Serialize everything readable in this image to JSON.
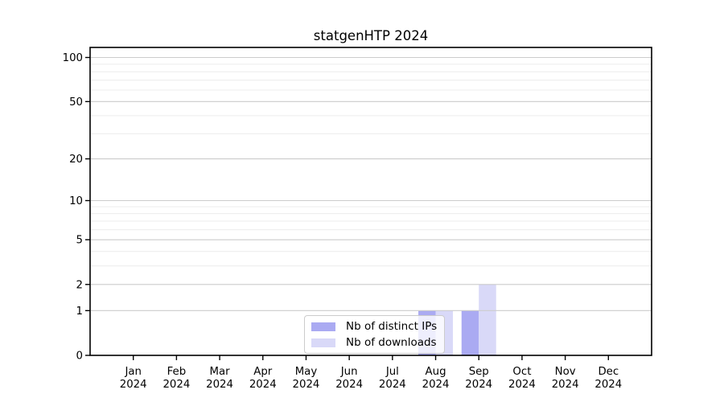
{
  "chart_data": {
    "type": "bar",
    "title": "statgenHTP 2024",
    "categories": [
      "Jan",
      "Feb",
      "Mar",
      "Apr",
      "May",
      "Jun",
      "Jul",
      "Aug",
      "Sep",
      "Oct",
      "Nov",
      "Dec"
    ],
    "category_year": "2024",
    "series": [
      {
        "name": "Nb of distinct IPs",
        "color": "#aaaaf2",
        "values": [
          0,
          0,
          0,
          0,
          0,
          0,
          0,
          1,
          1,
          0,
          0,
          0
        ]
      },
      {
        "name": "Nb of downloads",
        "color": "#d9d9f8",
        "values": [
          0,
          0,
          0,
          0,
          0,
          0,
          0,
          1,
          2,
          0,
          0,
          0
        ]
      }
    ],
    "xlabel": "",
    "ylabel": "",
    "yscale": "log1p",
    "ylim": [
      0,
      117
    ],
    "yticks": [
      0,
      1,
      2,
      5,
      10,
      20,
      50,
      100
    ],
    "yticks_minor": [
      3,
      4,
      6,
      7,
      8,
      9,
      30,
      40,
      60,
      70,
      80,
      90
    ],
    "grid": "horizontal",
    "legend_position": "lower-center-inside",
    "colors": {
      "major_grid": "#cccccc",
      "minor_grid": "#ececec",
      "axis": "#000000",
      "background": "#ffffff"
    }
  }
}
